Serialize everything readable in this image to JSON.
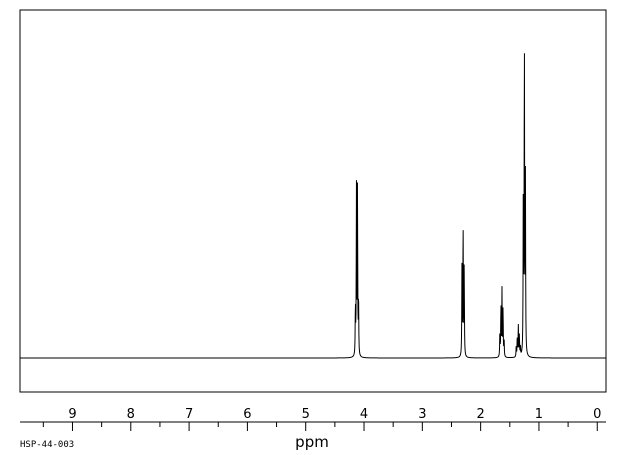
{
  "chart_data": {
    "type": "line",
    "title": "",
    "xlabel": "ppm",
    "ylabel": "",
    "xlim": [
      9.9,
      -0.15
    ],
    "x_reversed": true,
    "ylim": [
      -0.1,
      1.0
    ],
    "grid": false,
    "tick_labels": [
      "9",
      "8",
      "7",
      "6",
      "5",
      "4",
      "3",
      "2",
      "1",
      "0"
    ],
    "tick_values": [
      9,
      8,
      7,
      6,
      5,
      4,
      3,
      2,
      1,
      0
    ],
    "minor_tick_step": 0.5,
    "series": [
      {
        "peaks": [
          {
            "ppm": 4.148,
            "height": 0.14
          },
          {
            "ppm": 4.13,
            "height": 0.48
          },
          {
            "ppm": 4.112,
            "height": 0.49
          },
          {
            "ppm": 4.094,
            "height": 0.17
          },
          {
            "ppm": 2.32,
            "height": 0.26
          },
          {
            "ppm": 2.301,
            "height": 0.38
          },
          {
            "ppm": 2.282,
            "height": 0.26
          },
          {
            "ppm": 1.67,
            "height": 0.07
          },
          {
            "ppm": 1.652,
            "height": 0.15
          },
          {
            "ppm": 1.634,
            "height": 0.19
          },
          {
            "ppm": 1.616,
            "height": 0.14
          },
          {
            "ppm": 1.598,
            "height": 0.05
          },
          {
            "ppm": 1.39,
            "height": 0.03
          },
          {
            "ppm": 1.372,
            "height": 0.06
          },
          {
            "ppm": 1.354,
            "height": 0.09
          },
          {
            "ppm": 1.336,
            "height": 0.06
          },
          {
            "ppm": 1.318,
            "height": 0.03
          },
          {
            "ppm": 1.268,
            "height": 0.49
          },
          {
            "ppm": 1.25,
            "height": 0.92
          },
          {
            "ppm": 1.232,
            "height": 0.5
          }
        ]
      }
    ]
  },
  "footer": {
    "code": "HSP-44-003"
  }
}
